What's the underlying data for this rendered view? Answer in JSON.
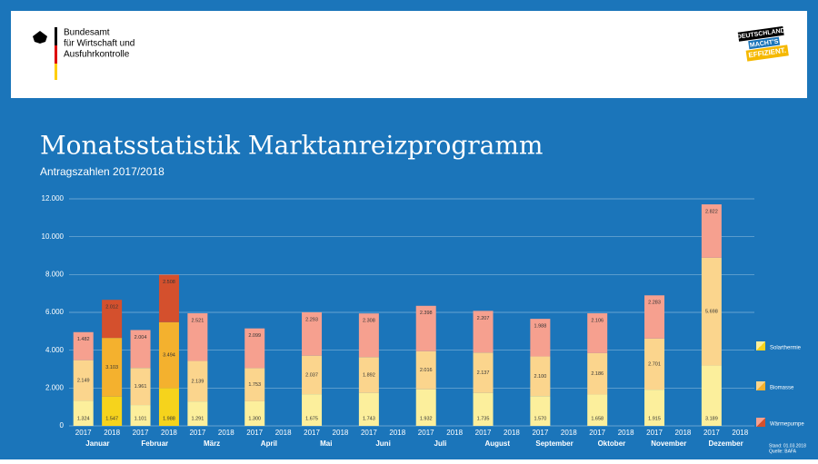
{
  "header": {
    "agency_lines": [
      "Bundesamt",
      "für Wirtschaft und",
      "Ausfuhrkontrolle"
    ],
    "logo_lines": [
      "DEUTSCHLAND",
      "MACHT'S",
      "EFFIZIENT."
    ]
  },
  "footer": {
    "lines": [
      "Stand: 01.03.2018",
      "Quelle: BAFA"
    ]
  },
  "chart_data": {
    "type": "stacked-bar",
    "title": "Monatsstatistik Marktanreizprogramm",
    "subtitle": "Antragszahlen 2017/2018",
    "categories": [
      "Januar",
      "Februar",
      "März",
      "April",
      "Mai",
      "Juni",
      "Juli",
      "August",
      "September",
      "Oktober",
      "November",
      "Dezember"
    ],
    "subcategories": [
      "2017",
      "2018"
    ],
    "ylim": [
      0,
      12000
    ],
    "yticks": [
      0,
      {
        "value": 2000,
        "label": "2.000"
      },
      {
        "value": 4000,
        "label": "4.000"
      },
      {
        "value": 6000,
        "label": "6.000"
      },
      {
        "value": 8000,
        "label": "8.000"
      },
      {
        "value": 10000,
        "label": "10.000"
      },
      {
        "value": 12000,
        "label": "12.000"
      }
    ],
    "grid": true,
    "series": [
      {
        "name": "Solarthermie",
        "colors": [
          "#fcef9c",
          "#f6d31c"
        ],
        "values": [
          [
            1324,
            1547
          ],
          [
            1101,
            1988
          ],
          [
            1291,
            null
          ],
          [
            1300,
            null
          ],
          [
            1675,
            null
          ],
          [
            1743,
            null
          ],
          [
            1932,
            null
          ],
          [
            1735,
            null
          ],
          [
            1570,
            null
          ],
          [
            1658,
            null
          ],
          [
            1915,
            null
          ],
          [
            3189,
            null
          ]
        ],
        "value_labels": [
          [
            "1.324",
            "1.547"
          ],
          [
            "1.101",
            "1.988"
          ],
          [
            "1.291",
            null
          ],
          [
            "1.300",
            null
          ],
          [
            "1.675",
            null
          ],
          [
            "1.743",
            null
          ],
          [
            "1.932",
            null
          ],
          [
            "1.735",
            null
          ],
          [
            "1.570",
            null
          ],
          [
            "1.658",
            null
          ],
          [
            "1.915",
            null
          ],
          [
            "3.189",
            null
          ]
        ]
      },
      {
        "name": "Biomasse",
        "colors": [
          "#fbd58d",
          "#f4b12e"
        ],
        "values": [
          [
            2149,
            3103
          ],
          [
            1961,
            3494
          ],
          [
            2139,
            null
          ],
          [
            1753,
            null
          ],
          [
            2037,
            null
          ],
          [
            1892,
            null
          ],
          [
            2016,
            null
          ],
          [
            2137,
            null
          ],
          [
            2100,
            null
          ],
          [
            2186,
            null
          ],
          [
            2701,
            null
          ],
          [
            5698,
            null
          ]
        ],
        "value_labels": [
          [
            "2.149",
            "3.103"
          ],
          [
            "1.961",
            "3.494"
          ],
          [
            "2.139",
            null
          ],
          [
            "1.753",
            null
          ],
          [
            "2.037",
            null
          ],
          [
            "1.892",
            null
          ],
          [
            "2.016",
            null
          ],
          [
            "2.137",
            null
          ],
          [
            "2.100",
            null
          ],
          [
            "2.186",
            null
          ],
          [
            "2.701",
            null
          ],
          [
            "5.698",
            null
          ]
        ]
      },
      {
        "name": "Wärmepumpe",
        "colors": [
          "#f6a08f",
          "#d4502d"
        ],
        "values": [
          [
            1482,
            2012
          ],
          [
            2004,
            2508
          ],
          [
            2521,
            null
          ],
          [
            2099,
            null
          ],
          [
            2293,
            null
          ],
          [
            2308,
            null
          ],
          [
            2398,
            null
          ],
          [
            2207,
            null
          ],
          [
            1988,
            null
          ],
          [
            2106,
            null
          ],
          [
            2283,
            null
          ],
          [
            2822,
            null
          ]
        ],
        "value_labels": [
          [
            "1.482",
            "2.012"
          ],
          [
            "2.004",
            "2.508"
          ],
          [
            "2.521",
            null
          ],
          [
            "2.099",
            null
          ],
          [
            "2.293",
            null
          ],
          [
            "2.308",
            null
          ],
          [
            "2.398",
            null
          ],
          [
            "2.207",
            null
          ],
          [
            "1.988",
            null
          ],
          [
            "2.106",
            null
          ],
          [
            "2.283",
            null
          ],
          [
            "2.822",
            null
          ]
        ]
      }
    ]
  }
}
